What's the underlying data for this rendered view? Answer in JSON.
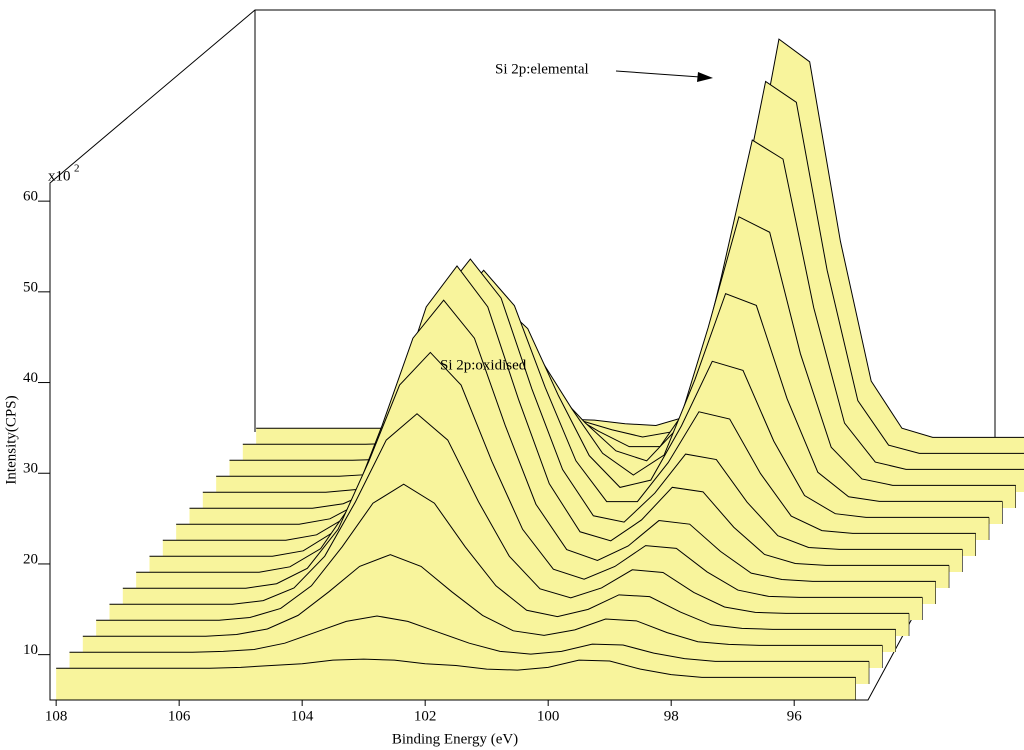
{
  "chart_data": {
    "type": "waterfall",
    "xlabel": "Binding Energy (eV)",
    "ylabel": "Intensity(CPS)",
    "y_scale_label": "x10",
    "y_scale_exponent": "2",
    "annotations": [
      {
        "text": "Si 2p:elemental"
      },
      {
        "text": "Si 2p:oxidised"
      }
    ],
    "xlim": [
      108.1,
      94.8
    ],
    "xticks": [
      108,
      106,
      104,
      102,
      100,
      98,
      96
    ],
    "ylim": [
      5,
      62
    ],
    "yticks": [
      10,
      20,
      30,
      40,
      50,
      60
    ],
    "fill_color": "#f8f49c",
    "line_color": "#000000",
    "background_color": "#3ceaf2",
    "x": [
      108,
      107.5,
      107,
      106.5,
      106,
      105.5,
      105,
      104.5,
      104,
      103.5,
      103,
      102.5,
      102,
      101.5,
      101,
      100.5,
      100,
      99.5,
      99,
      98.5,
      98,
      97.5,
      97,
      96.5,
      96,
      95.5,
      95
    ],
    "series": [
      {
        "values": [
          8.5,
          8.5,
          8.5,
          8.5,
          8.5,
          8.5,
          8.6,
          8.8,
          9.0,
          9.4,
          9.5,
          9.4,
          9.0,
          8.8,
          8.4,
          8.3,
          8.6,
          9.4,
          9.3,
          8.4,
          7.8,
          7.5,
          7.5,
          7.5,
          7.5,
          7.5,
          7.5
        ]
      },
      {
        "values": [
          8.5,
          8.5,
          8.5,
          8.5,
          8.5,
          8.6,
          8.8,
          9.5,
          10.7,
          11.9,
          12.5,
          11.9,
          10.7,
          9.5,
          8.6,
          8.3,
          8.6,
          9.4,
          9.3,
          8.4,
          7.8,
          7.5,
          7.5,
          7.5,
          7.5,
          7.5,
          7.5
        ]
      },
      {
        "values": [
          8.5,
          8.5,
          8.5,
          8.5,
          8.5,
          8.7,
          9.3,
          10.8,
          13.4,
          16.2,
          17.5,
          16.2,
          13.4,
          10.8,
          9.1,
          8.6,
          9.2,
          10.4,
          10.2,
          8.9,
          7.9,
          7.6,
          7.5,
          7.5,
          7.5,
          7.5,
          7.5
        ]
      },
      {
        "values": [
          8.5,
          8.5,
          8.5,
          8.5,
          8.5,
          8.8,
          9.8,
          12.3,
          16.6,
          21.4,
          23.5,
          21.4,
          16.6,
          12.3,
          9.6,
          8.9,
          9.7,
          11.3,
          11.1,
          9.4,
          8.0,
          7.6,
          7.5,
          7.5,
          7.5,
          7.5,
          7.5
        ]
      },
      {
        "values": [
          8.5,
          8.5,
          8.5,
          8.5,
          8.5,
          8.9,
          10.3,
          13.8,
          19.8,
          26.6,
          29.5,
          26.6,
          19.8,
          13.8,
          10.2,
          9.2,
          10.3,
          12.3,
          12.0,
          9.8,
          8.2,
          7.6,
          7.5,
          7.5,
          7.5,
          7.5,
          7.5
        ]
      },
      {
        "values": [
          8.5,
          8.5,
          8.5,
          8.5,
          8.5,
          9.0,
          10.7,
          15.0,
          22.5,
          30.9,
          34.5,
          30.9,
          22.5,
          15.0,
          10.6,
          9.5,
          10.9,
          13.2,
          12.9,
          10.3,
          8.3,
          7.6,
          7.5,
          7.5,
          7.5,
          7.5,
          7.5
        ]
      },
      {
        "values": [
          8.5,
          8.5,
          8.5,
          8.5,
          8.5,
          9.1,
          11.1,
          16.0,
          24.7,
          34.3,
          38.5,
          34.3,
          24.7,
          16.0,
          11.0,
          9.8,
          11.4,
          14.2,
          13.8,
          10.8,
          8.4,
          7.7,
          7.5,
          7.5,
          7.5,
          7.5,
          7.5
        ]
      },
      {
        "values": [
          8.5,
          8.5,
          8.5,
          8.5,
          8.5,
          9.1,
          11.2,
          16.5,
          25.8,
          36.0,
          40.5,
          36.0,
          25.8,
          16.5,
          11.2,
          10.2,
          12.5,
          16.1,
          15.6,
          11.7,
          8.7,
          7.7,
          7.5,
          7.5,
          7.5,
          7.5,
          7.5
        ]
      },
      {
        "values": [
          8.5,
          8.5,
          8.5,
          8.5,
          8.5,
          9.1,
          11.1,
          16.3,
          25.2,
          35.2,
          39.5,
          35.2,
          25.2,
          16.3,
          11.2,
          10.5,
          13.7,
          18.0,
          17.4,
          12.7,
          9.0,
          7.7,
          7.5,
          7.5,
          7.5,
          7.5,
          7.5
        ]
      },
      {
        "values": [
          8.5,
          8.5,
          8.5,
          8.5,
          8.5,
          9.1,
          10.9,
          15.5,
          23.6,
          32.6,
          36.5,
          32.6,
          23.6,
          15.5,
          11.0,
          11.0,
          15.3,
          20.9,
          20.1,
          14.1,
          9.4,
          7.8,
          7.5,
          7.5,
          7.5,
          7.5,
          7.5
        ]
      },
      {
        "values": [
          8.5,
          8.5,
          8.5,
          8.5,
          8.5,
          9.0,
          10.5,
          14.3,
          20.9,
          28.3,
          31.5,
          28.3,
          20.9,
          14.3,
          10.8,
          11.6,
          17.6,
          24.7,
          23.7,
          15.9,
          9.9,
          7.9,
          7.5,
          7.5,
          7.5,
          7.5,
          7.5
        ]
      },
      {
        "values": [
          8.5,
          8.5,
          8.5,
          8.5,
          8.5,
          8.8,
          9.9,
          12.8,
          17.7,
          23.1,
          25.5,
          23.1,
          17.7,
          12.8,
          10.4,
          12.6,
          20.9,
          30.4,
          29.1,
          18.8,
          10.7,
          8.0,
          7.5,
          7.5,
          7.5,
          7.5,
          7.5
        ]
      },
      {
        "values": [
          8.5,
          8.5,
          8.5,
          8.5,
          8.5,
          8.7,
          9.4,
          11.3,
          14.4,
          18.0,
          19.5,
          18.0,
          14.4,
          11.3,
          10.2,
          13.8,
          24.9,
          37.1,
          35.4,
          22.0,
          11.7,
          8.2,
          7.5,
          7.5,
          7.5,
          7.5,
          7.5
        ]
      },
      {
        "values": [
          8.5,
          8.5,
          8.5,
          8.5,
          8.5,
          8.6,
          9.0,
          10.0,
          11.7,
          13.7,
          14.5,
          13.7,
          11.7,
          10.0,
          10.0,
          14.9,
          28.8,
          43.8,
          41.7,
          25.3,
          12.6,
          8.3,
          7.5,
          7.5,
          7.5,
          7.5,
          7.5
        ]
      },
      {
        "values": [
          8.5,
          8.5,
          8.5,
          8.5,
          8.5,
          8.6,
          8.8,
          9.3,
          10.1,
          11.1,
          11.5,
          11.1,
          10.1,
          9.3,
          9.9,
          15.8,
          31.6,
          48.5,
          46.2,
          27.7,
          13.3,
          8.4,
          7.5,
          7.5,
          7.5,
          7.5,
          7.5
        ]
      },
      {
        "values": [
          8.5,
          8.5,
          8.5,
          8.5,
          8.5,
          8.5,
          8.6,
          8.8,
          9.0,
          9.4,
          9.5,
          9.4,
          9.0,
          8.8,
          9.8,
          16.3,
          33.3,
          51.4,
          48.9,
          29.1,
          13.7,
          8.5,
          7.5,
          7.5,
          7.5,
          7.5,
          7.5
        ]
      }
    ]
  }
}
